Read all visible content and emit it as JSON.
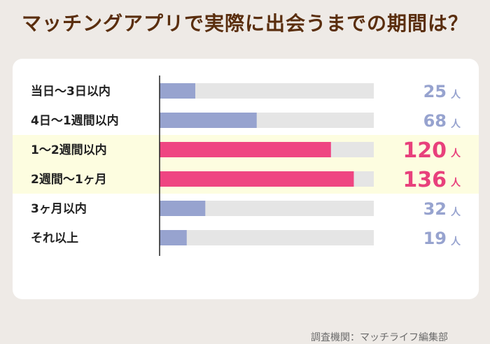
{
  "title": "マッチングアプリで実際に出会うまでの期間は？",
  "source": "調査機関：マッチライフ編集部",
  "colors": {
    "normal_bar": "#97a3cf",
    "highlight_bar": "#ef4582",
    "track": "#e5e5e5",
    "highlight_band": "#fdfde0",
    "normal_value": "#97a3cf",
    "highlight_value": "#e8407c",
    "label": "#222222"
  },
  "chart_data": {
    "type": "bar",
    "orientation": "horizontal",
    "unit": "人",
    "categories": [
      "当日〜3日以内",
      "4日〜1週間以内",
      "1〜2週間以内",
      "2週間〜1ヶ月",
      "3ヶ月以内",
      "それ以上"
    ],
    "values": [
      25,
      68,
      120,
      136,
      32,
      19
    ],
    "highlighted": [
      false,
      false,
      true,
      true,
      false,
      false
    ],
    "xlim": [
      0,
      150
    ],
    "grid": false,
    "legend": "none"
  }
}
